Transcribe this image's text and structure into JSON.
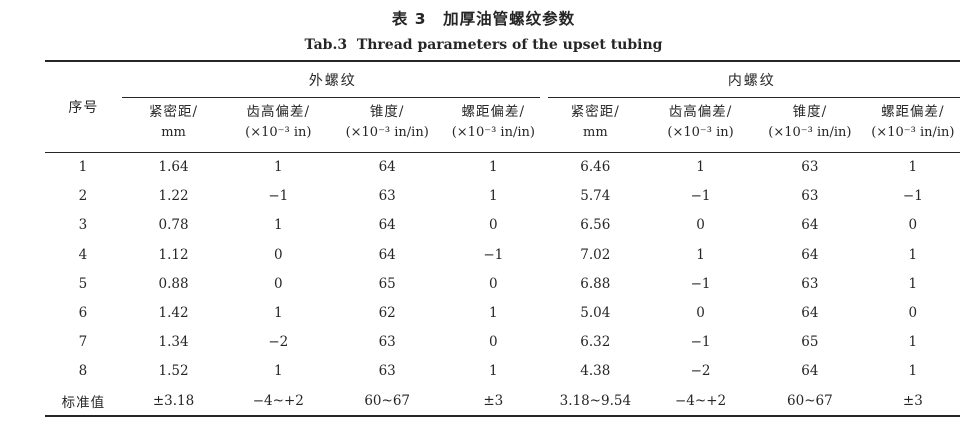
{
  "title": {
    "zh": "表 3　加厚油管螺纹参数",
    "en": "Tab.3  Thread parameters of the upset tubing"
  },
  "table": {
    "row_header": "序号",
    "groups": [
      {
        "label": "外螺纹",
        "columns": [
          {
            "name": "紧密距/",
            "unit": "mm"
          },
          {
            "name": "齿高偏差/",
            "unit": "(×10⁻³ in)"
          },
          {
            "name": "锥度/",
            "unit": "(×10⁻³ in/in)"
          },
          {
            "name": "螺距偏差/",
            "unit": "(×10⁻³ in/in)"
          }
        ]
      },
      {
        "label": "内螺纹",
        "columns": [
          {
            "name": "紧密距/",
            "unit": "mm"
          },
          {
            "name": "齿高偏差/",
            "unit": "(×10⁻³ in)"
          },
          {
            "name": "锥度/",
            "unit": "(×10⁻³ in/in)"
          },
          {
            "name": "螺距偏差/",
            "unit": "(×10⁻³ in/in)"
          }
        ]
      }
    ],
    "rows": [
      {
        "id": "1",
        "values": [
          "1.64",
          "1",
          "64",
          "1",
          "6.46",
          "1",
          "63",
          "1"
        ]
      },
      {
        "id": "2",
        "values": [
          "1.22",
          "−1",
          "63",
          "1",
          "5.74",
          "−1",
          "63",
          "−1"
        ]
      },
      {
        "id": "3",
        "values": [
          "0.78",
          "1",
          "64",
          "0",
          "6.56",
          "0",
          "64",
          "0"
        ]
      },
      {
        "id": "4",
        "values": [
          "1.12",
          "0",
          "64",
          "−1",
          "7.02",
          "1",
          "64",
          "1"
        ]
      },
      {
        "id": "5",
        "values": [
          "0.88",
          "0",
          "65",
          "0",
          "6.88",
          "−1",
          "63",
          "1"
        ]
      },
      {
        "id": "6",
        "values": [
          "1.42",
          "1",
          "62",
          "1",
          "5.04",
          "0",
          "64",
          "0"
        ]
      },
      {
        "id": "7",
        "values": [
          "1.34",
          "−2",
          "63",
          "0",
          "6.32",
          "−1",
          "65",
          "1"
        ]
      },
      {
        "id": "8",
        "values": [
          "1.52",
          "1",
          "63",
          "1",
          "4.38",
          "−2",
          "64",
          "1"
        ]
      }
    ],
    "footer": {
      "id": "标准值",
      "values": [
        "±3.18",
        "−4~+2",
        "60~67",
        "±3",
        "3.18~9.54",
        "−4~+2",
        "60~67",
        "±3"
      ]
    }
  },
  "chart_data": {
    "type": "table",
    "title": "表 3 加厚油管螺纹参数 / Tab.3 Thread parameters of the upset tubing",
    "column_groups": [
      "外螺纹",
      "内螺纹"
    ],
    "columns": [
      "序号",
      "外螺纹 紧密距/mm",
      "外螺纹 齿高偏差/(×10⁻³ in)",
      "外螺纹 锥度/(×10⁻³ in/in)",
      "外螺纹 螺距偏差/(×10⁻³ in/in)",
      "内螺纹 紧密距/mm",
      "内螺纹 齿高偏差/(×10⁻³ in)",
      "内螺纹 锥度/(×10⁻³ in/in)",
      "内螺纹 螺距偏差/(×10⁻³ in/in)"
    ],
    "rows": [
      [
        "1",
        1.64,
        1,
        64,
        1,
        6.46,
        1,
        63,
        1
      ],
      [
        "2",
        1.22,
        -1,
        63,
        1,
        5.74,
        -1,
        63,
        -1
      ],
      [
        "3",
        0.78,
        1,
        64,
        0,
        6.56,
        0,
        64,
        0
      ],
      [
        "4",
        1.12,
        0,
        64,
        -1,
        7.02,
        1,
        64,
        1
      ],
      [
        "5",
        0.88,
        0,
        65,
        0,
        6.88,
        -1,
        63,
        1
      ],
      [
        "6",
        1.42,
        1,
        62,
        1,
        5.04,
        0,
        64,
        0
      ],
      [
        "7",
        1.34,
        -2,
        63,
        0,
        6.32,
        -1,
        65,
        1
      ],
      [
        "8",
        1.52,
        1,
        63,
        1,
        4.38,
        -2,
        64,
        1
      ],
      [
        "标准值",
        "±3.18",
        "−4~+2",
        "60~67",
        "±3",
        "3.18~9.54",
        "−4~+2",
        "60~67",
        "±3"
      ]
    ]
  }
}
